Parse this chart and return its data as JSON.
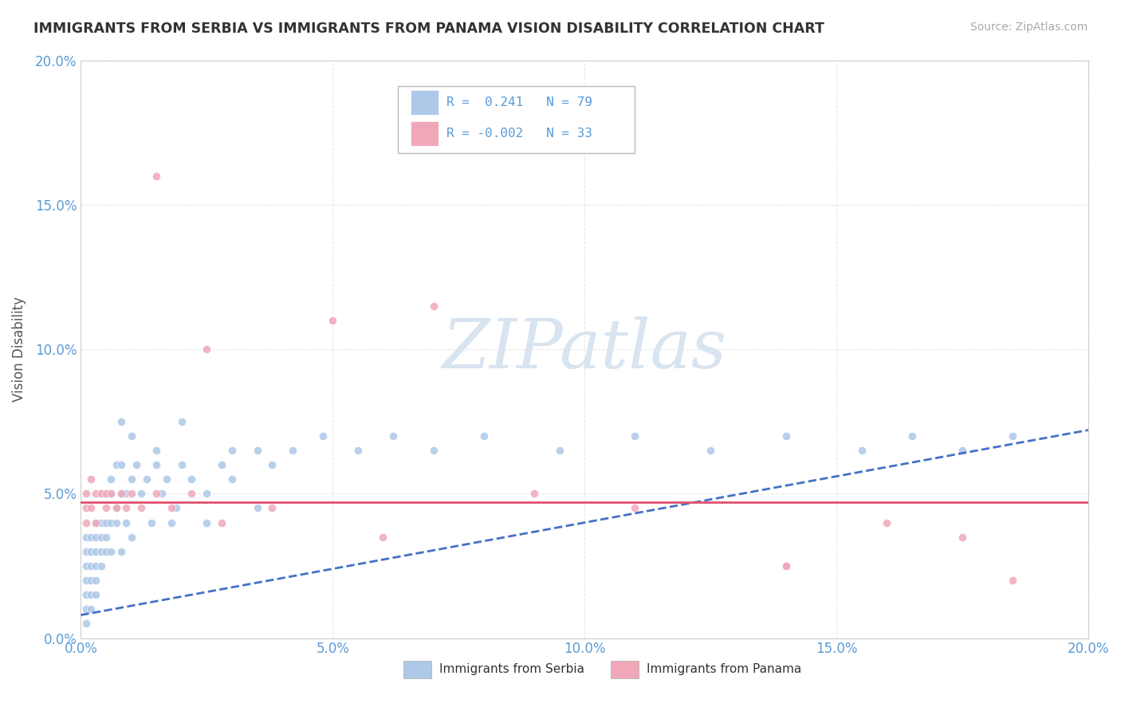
{
  "title": "IMMIGRANTS FROM SERBIA VS IMMIGRANTS FROM PANAMA VISION DISABILITY CORRELATION CHART",
  "source": "Source: ZipAtlas.com",
  "ylabel": "Vision Disability",
  "serbia_R": 0.241,
  "serbia_N": 79,
  "panama_R": -0.002,
  "panama_N": 33,
  "serbia_color": "#adc8e8",
  "panama_color": "#f0a8b8",
  "serbia_line_color": "#4472c4",
  "panama_line_color": "#e05070",
  "watermark_color": "#d8e4f0",
  "grid_color": "#e8e8e8",
  "background_color": "#ffffff",
  "x_ticks": [
    0.0,
    0.05,
    0.1,
    0.15,
    0.2
  ],
  "x_tick_labels": [
    "0.0%",
    "5.0%",
    "10.0%",
    "15.0%",
    "20.0%"
  ],
  "y_ticks": [
    0.0,
    0.05,
    0.1,
    0.15,
    0.2
  ],
  "y_tick_labels": [
    "0.0%",
    "5.0%",
    "10.0%",
    "15.0%",
    "20.0%"
  ],
  "serbia_x": [
    0.001,
    0.001,
    0.001,
    0.001,
    0.001,
    0.001,
    0.001,
    0.002,
    0.002,
    0.002,
    0.002,
    0.002,
    0.002,
    0.003,
    0.003,
    0.003,
    0.003,
    0.003,
    0.003,
    0.004,
    0.004,
    0.004,
    0.004,
    0.004,
    0.005,
    0.005,
    0.005,
    0.005,
    0.006,
    0.006,
    0.006,
    0.006,
    0.007,
    0.007,
    0.007,
    0.008,
    0.008,
    0.008,
    0.009,
    0.009,
    0.01,
    0.01,
    0.011,
    0.012,
    0.013,
    0.014,
    0.015,
    0.016,
    0.017,
    0.018,
    0.019,
    0.02,
    0.022,
    0.025,
    0.028,
    0.03,
    0.035,
    0.038,
    0.042,
    0.048,
    0.055,
    0.062,
    0.07,
    0.08,
    0.095,
    0.11,
    0.125,
    0.14,
    0.155,
    0.165,
    0.175,
    0.185,
    0.02,
    0.025,
    0.03,
    0.035,
    0.01,
    0.015,
    0.008
  ],
  "serbia_y": [
    0.01,
    0.02,
    0.025,
    0.03,
    0.015,
    0.005,
    0.035,
    0.02,
    0.015,
    0.03,
    0.025,
    0.035,
    0.01,
    0.025,
    0.03,
    0.02,
    0.04,
    0.015,
    0.035,
    0.03,
    0.04,
    0.025,
    0.035,
    0.05,
    0.04,
    0.03,
    0.05,
    0.035,
    0.04,
    0.05,
    0.03,
    0.055,
    0.045,
    0.06,
    0.04,
    0.05,
    0.03,
    0.06,
    0.05,
    0.04,
    0.055,
    0.035,
    0.06,
    0.05,
    0.055,
    0.04,
    0.06,
    0.05,
    0.055,
    0.04,
    0.045,
    0.06,
    0.055,
    0.05,
    0.06,
    0.055,
    0.065,
    0.06,
    0.065,
    0.07,
    0.065,
    0.07,
    0.065,
    0.07,
    0.065,
    0.07,
    0.065,
    0.07,
    0.065,
    0.07,
    0.065,
    0.07,
    0.075,
    0.04,
    0.065,
    0.045,
    0.07,
    0.065,
    0.075
  ],
  "panama_x": [
    0.001,
    0.001,
    0.001,
    0.002,
    0.002,
    0.003,
    0.003,
    0.004,
    0.005,
    0.005,
    0.006,
    0.007,
    0.008,
    0.009,
    0.01,
    0.012,
    0.015,
    0.018,
    0.022,
    0.028,
    0.038,
    0.05,
    0.07,
    0.09,
    0.11,
    0.14,
    0.16,
    0.175,
    0.185,
    0.015,
    0.025,
    0.06,
    0.14
  ],
  "panama_y": [
    0.045,
    0.05,
    0.04,
    0.045,
    0.055,
    0.05,
    0.04,
    0.05,
    0.05,
    0.045,
    0.05,
    0.045,
    0.05,
    0.045,
    0.05,
    0.045,
    0.05,
    0.045,
    0.05,
    0.04,
    0.045,
    0.11,
    0.115,
    0.05,
    0.045,
    0.025,
    0.04,
    0.035,
    0.02,
    0.16,
    0.1,
    0.035,
    0.025
  ],
  "serbia_line_x": [
    0.0,
    0.2
  ],
  "serbia_line_y": [
    0.008,
    0.072
  ],
  "panama_line_x": [
    0.0,
    0.2
  ],
  "panama_line_y": [
    0.047,
    0.047
  ]
}
